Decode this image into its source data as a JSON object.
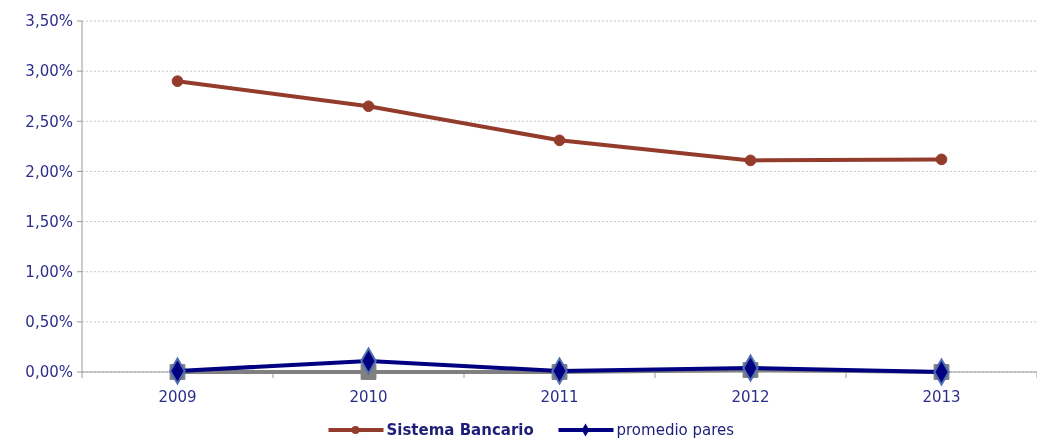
{
  "chart_data": {
    "type": "line",
    "categories": [
      "2009",
      "2010",
      "2011",
      "2012",
      "2013"
    ],
    "series": [
      {
        "color": "#808080",
        "marker": "square",
        "values": [
          0,
          0,
          0,
          0.02,
          0
        ]
      },
      {
        "name": "Sistema Bancario",
        "color": "#943c2b",
        "marker": "circle",
        "values": [
          2.9,
          2.65,
          2.31,
          2.11,
          2.12
        ]
      },
      {
        "name": "promedio pares",
        "color": "#000080",
        "marker": "diamond",
        "values": [
          0.01,
          0.11,
          0.01,
          0.04,
          0
        ]
      }
    ],
    "ylim": [
      0,
      3.5
    ],
    "yticks": [
      {
        "value": 0,
        "label": "0,00%"
      },
      {
        "value": 0.5,
        "label": "0,50%"
      },
      {
        "value": 1,
        "label": "1,00%"
      },
      {
        "value": 1.5,
        "label": "1,50%"
      },
      {
        "value": 2,
        "label": "2,00%"
      },
      {
        "value": 2.5,
        "label": "2,50%"
      },
      {
        "value": 3,
        "label": "3,00%"
      },
      {
        "value": 3.5,
        "label": "3,50%"
      }
    ],
    "grid": "y",
    "legend": "bottom",
    "line_style": "solid"
  }
}
